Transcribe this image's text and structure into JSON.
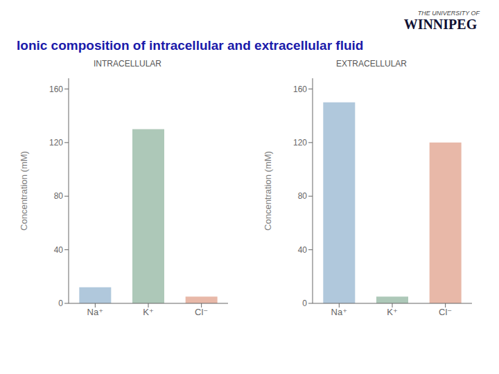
{
  "title": "Ionic composition of intracellular and extracellular fluid",
  "annotations": [
    "THE UNIVERSITY OF",
    "WINNIPEG"
  ],
  "chart_data": [
    {
      "type": "bar",
      "subtitle": "INTRACELLULAR",
      "categories": [
        "Na⁺",
        "K⁺",
        "Cl⁻"
      ],
      "values": [
        12,
        130,
        5
      ],
      "colors": [
        "#b0c8dc",
        "#adc8b8",
        "#e8b8a8"
      ],
      "ylabel": "Concentration (mM)",
      "ylim": [
        0,
        168
      ],
      "yticks": [
        0,
        40,
        80,
        120,
        160
      ],
      "grid": false
    },
    {
      "type": "bar",
      "subtitle": "EXTRACELLULAR",
      "categories": [
        "Na⁺",
        "K⁺",
        "Cl⁻"
      ],
      "values": [
        150,
        5,
        120
      ],
      "colors": [
        "#b0c8dc",
        "#adc8b8",
        "#e8b8a8"
      ],
      "ylabel": "Concentration (mM)",
      "ylim": [
        0,
        168
      ],
      "yticks": [
        0,
        40,
        80,
        120,
        160
      ],
      "grid": false
    }
  ]
}
